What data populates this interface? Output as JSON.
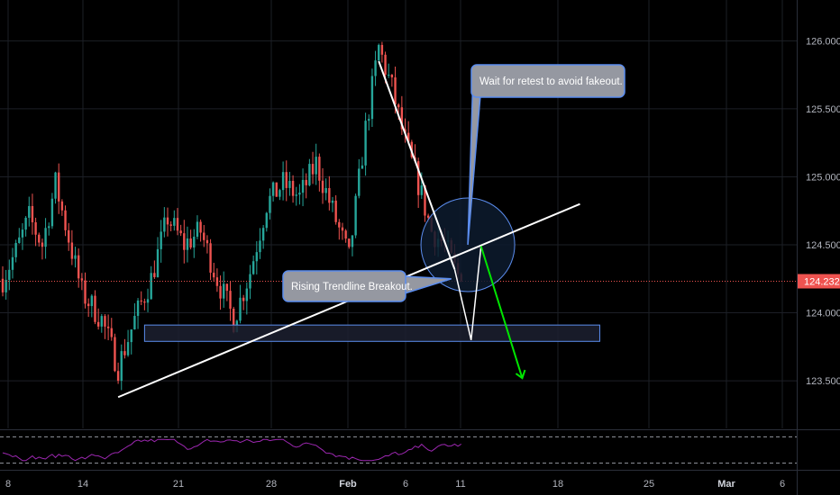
{
  "colors": {
    "background": "#000000",
    "up_candle": "#26a69a",
    "down_candle": "#ef5350",
    "grid": "#1c1f26",
    "trendline": "#ffffff",
    "support_box_border": "#5b8def",
    "callout_fill": "#9598a1",
    "callout_border": "#5b8def",
    "circle_fill": "#0d1b2e",
    "circle_border": "#5b8def",
    "green_arrow": "#00e600",
    "price_line": "#ef5350",
    "price_tag": "#ef5350",
    "rsi_line": "#9c27b0"
  },
  "chart_data": {
    "type": "candlestick",
    "y_axis": {
      "ticks": [
        "126.000",
        "125.500",
        "125.000",
        "124.500",
        "124.000",
        "123.500"
      ],
      "tick_values": [
        126.0,
        125.5,
        125.0,
        124.5,
        124.0,
        123.5
      ],
      "ylim": [
        123.15,
        126.3
      ]
    },
    "x_axis": {
      "ticks": [
        "8",
        "14",
        "21",
        "28",
        "Feb",
        "6",
        "11",
        "18",
        "25",
        "Mar",
        "6"
      ],
      "bold_ticks": [
        "Feb",
        "Mar"
      ]
    },
    "current_price": "124.232",
    "current_price_value": 124.232,
    "support_zone": {
      "low": 123.79,
      "high": 123.91
    },
    "price_path_anchors": [
      {
        "i": 0,
        "p": 124.25
      },
      {
        "i": 4,
        "p": 124.45
      },
      {
        "i": 8,
        "p": 124.7
      },
      {
        "i": 12,
        "p": 124.5
      },
      {
        "i": 16,
        "p": 124.95
      },
      {
        "i": 20,
        "p": 124.55
      },
      {
        "i": 24,
        "p": 124.15
      },
      {
        "i": 30,
        "p": 123.95
      },
      {
        "i": 35,
        "p": 123.6
      },
      {
        "i": 40,
        "p": 123.95
      },
      {
        "i": 45,
        "p": 124.25
      },
      {
        "i": 50,
        "p": 124.7
      },
      {
        "i": 55,
        "p": 124.5
      },
      {
        "i": 60,
        "p": 124.6
      },
      {
        "i": 65,
        "p": 124.25
      },
      {
        "i": 70,
        "p": 123.95
      },
      {
        "i": 75,
        "p": 124.3
      },
      {
        "i": 80,
        "p": 124.8
      },
      {
        "i": 85,
        "p": 124.95
      },
      {
        "i": 90,
        "p": 124.85
      },
      {
        "i": 95,
        "p": 125.1
      },
      {
        "i": 100,
        "p": 124.75
      },
      {
        "i": 105,
        "p": 124.4
      },
      {
        "i": 110,
        "p": 125.35
      },
      {
        "i": 114,
        "p": 125.95
      },
      {
        "i": 118,
        "p": 125.65
      },
      {
        "i": 122,
        "p": 125.25
      },
      {
        "i": 126,
        "p": 124.95
      },
      {
        "i": 130,
        "p": 124.6
      },
      {
        "i": 134,
        "p": 124.5
      },
      {
        "i": 137,
        "p": 124.32
      },
      {
        "i": 139,
        "p": 124.232
      }
    ],
    "annotations": [
      {
        "type": "trendline",
        "name": "rising-trendline",
        "from": {
          "i": 35,
          "p": 123.38
        },
        "to": {
          "i": 175,
          "p": 124.8
        }
      },
      {
        "type": "trendline",
        "name": "falling-trendline",
        "from": {
          "i": 114,
          "p": 125.85
        },
        "to": {
          "i": 137,
          "p": 124.32
        }
      },
      {
        "type": "callout",
        "name": "breakout-callout",
        "text": "Rising Trendline Breakout."
      },
      {
        "type": "callout",
        "name": "retest-callout",
        "text": "Wait for retest to avoid fakeout."
      },
      {
        "type": "circle",
        "name": "retest-circle"
      },
      {
        "type": "path",
        "name": "projected-path"
      },
      {
        "type": "arrow",
        "name": "green-arrow"
      }
    ]
  },
  "rsi": {
    "upper_level": 70,
    "lower_level": 30
  }
}
